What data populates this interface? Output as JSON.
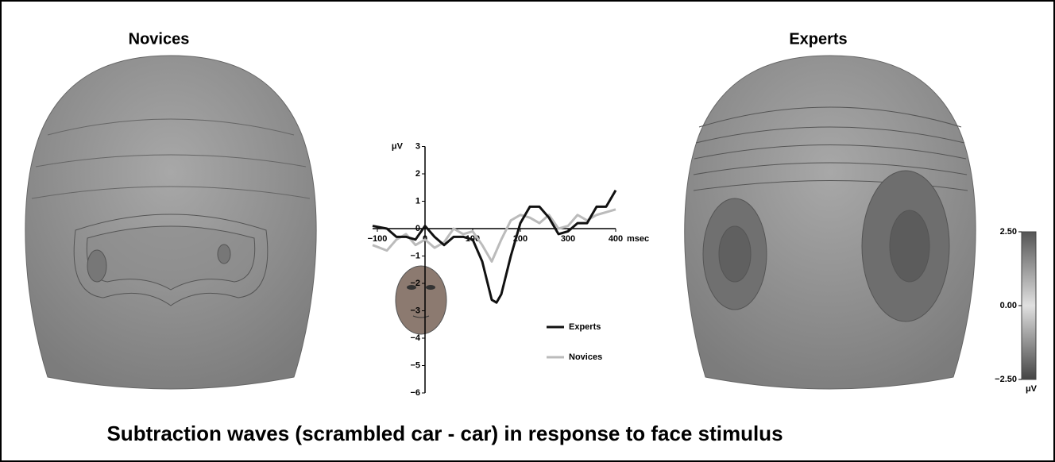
{
  "figure": {
    "left_label": "Novices",
    "right_label": "Experts",
    "caption": "Subtraction waves (scrambled car - car) in response to face stimulus",
    "colorbar": {
      "ylim": [
        -2.5,
        2.5
      ],
      "ticks": [
        {
          "value": 2.5,
          "label": "2.50"
        },
        {
          "value": 0,
          "label": "0.00"
        },
        {
          "value": -2.5,
          "label": "−2.50"
        }
      ],
      "unit": "μV"
    }
  },
  "chart_data": {
    "type": "line",
    "y_label": "μV",
    "x_label": "msec",
    "x": [
      -110,
      -80,
      -60,
      -40,
      -20,
      0,
      20,
      40,
      60,
      80,
      100,
      120,
      140,
      150,
      160,
      180,
      200,
      220,
      240,
      260,
      280,
      300,
      320,
      340,
      360,
      380,
      400
    ],
    "series": [
      {
        "name": "Experts",
        "color": "#111111",
        "values": [
          0.1,
          0.0,
          -0.3,
          -0.3,
          -0.4,
          0.1,
          -0.3,
          -0.6,
          -0.3,
          -0.3,
          -0.4,
          -1.2,
          -2.6,
          -2.7,
          -2.4,
          -1.0,
          0.2,
          0.8,
          0.8,
          0.4,
          -0.2,
          -0.1,
          0.2,
          0.2,
          0.8,
          0.8,
          1.4
        ]
      },
      {
        "name": "Novices",
        "color": "#bbbbbb",
        "values": [
          -0.6,
          -0.8,
          -0.4,
          -0.2,
          -0.6,
          -0.4,
          -0.7,
          -0.5,
          0.0,
          -0.2,
          -0.1,
          -0.6,
          -1.2,
          -0.8,
          -0.4,
          0.3,
          0.5,
          0.4,
          0.2,
          0.5,
          0.0,
          0.1,
          0.5,
          0.3,
          0.5,
          0.6,
          0.7
        ]
      }
    ],
    "xlim": [
      -110,
      400
    ],
    "xticks": [
      {
        "value": -100,
        "label": "−100"
      },
      0,
      100,
      200,
      300,
      400
    ],
    "ylim": [
      -6,
      3
    ],
    "yticks": [
      3,
      2,
      1,
      0,
      {
        "value": -1,
        "label": "−1"
      },
      {
        "value": -2,
        "label": "−2"
      },
      {
        "value": -3,
        "label": "−3"
      },
      {
        "value": -4,
        "label": "−4"
      },
      {
        "value": -5,
        "label": "−5"
      },
      {
        "value": -6,
        "label": "−6"
      }
    ]
  }
}
